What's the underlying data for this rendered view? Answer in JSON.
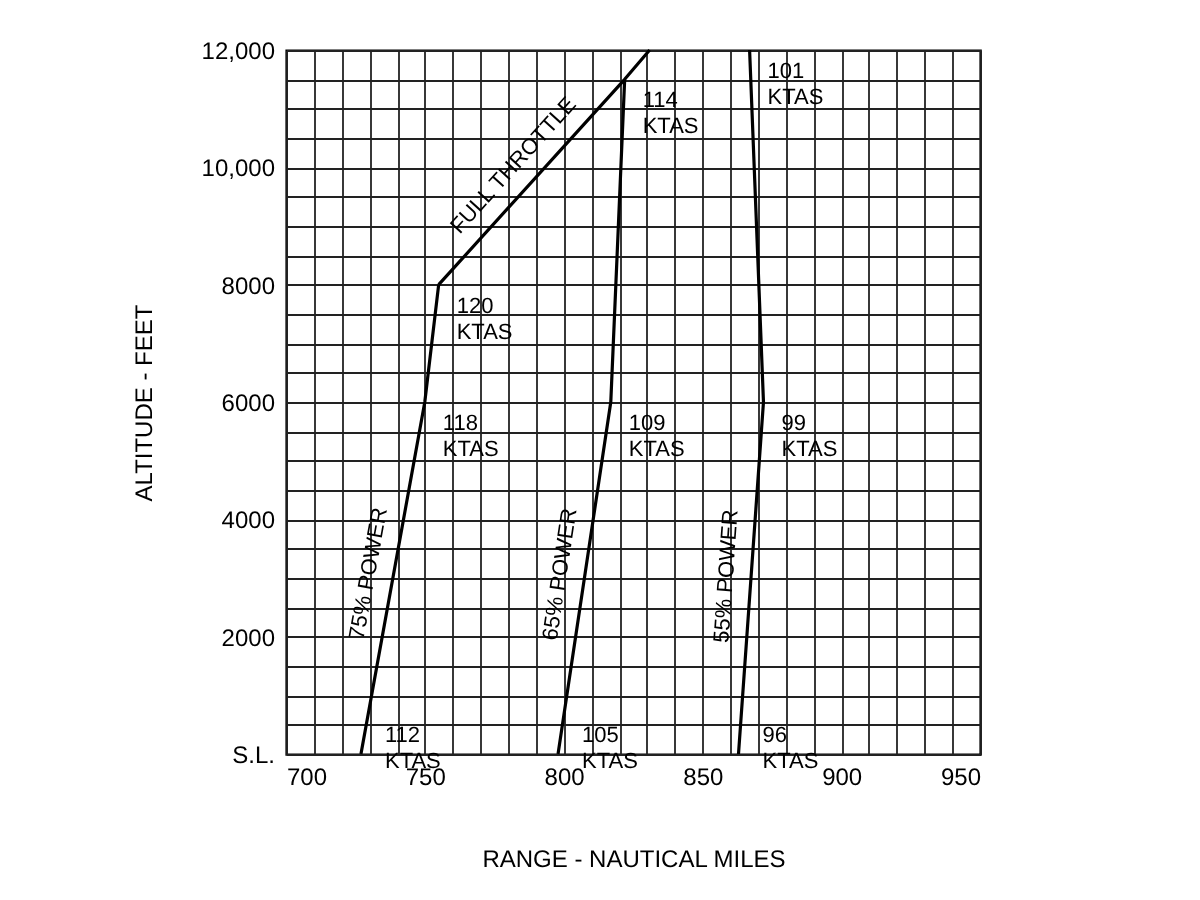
{
  "chart_data": {
    "type": "line",
    "xlabel": "RANGE - NAUTICAL MILES",
    "ylabel": "ALTITUDE - FEET",
    "xlim": [
      700,
      950
    ],
    "ylim": [
      0,
      12000
    ],
    "xticks": [
      700,
      {
        "value": 710,
        "label": null
      },
      {
        "value": 720,
        "label": null
      },
      {
        "value": 730,
        "label": null
      },
      {
        "value": 740,
        "label": null
      },
      750,
      {
        "value": 760,
        "label": null
      },
      {
        "value": 770,
        "label": null
      },
      {
        "value": 780,
        "label": null
      },
      {
        "value": 790,
        "label": null
      },
      800,
      {
        "value": 810,
        "label": null
      },
      {
        "value": 820,
        "label": null
      },
      {
        "value": 830,
        "label": null
      },
      {
        "value": 840,
        "label": null
      },
      850,
      {
        "value": 860,
        "label": null
      },
      {
        "value": 870,
        "label": null
      },
      {
        "value": 880,
        "label": null
      },
      {
        "value": 890,
        "label": null
      },
      900,
      {
        "value": 910,
        "label": null
      },
      {
        "value": 920,
        "label": null
      },
      {
        "value": 930,
        "label": null
      },
      {
        "value": 940,
        "label": null
      },
      950
    ],
    "yticks": [
      {
        "value": 0,
        "label": "S.L."
      },
      {
        "value": 500,
        "label": null
      },
      {
        "value": 1000,
        "label": null
      },
      {
        "value": 1500,
        "label": null
      },
      2000,
      {
        "value": 2500,
        "label": null
      },
      {
        "value": 3000,
        "label": null
      },
      {
        "value": 3500,
        "label": null
      },
      4000,
      {
        "value": 4500,
        "label": null
      },
      {
        "value": 5000,
        "label": null
      },
      {
        "value": 5500,
        "label": null
      },
      6000,
      {
        "value": 6500,
        "label": null
      },
      {
        "value": 7000,
        "label": null
      },
      {
        "value": 7500,
        "label": null
      },
      8000,
      {
        "value": 8500,
        "label": null
      },
      {
        "value": 9000,
        "label": null
      },
      {
        "value": 9500,
        "label": null
      },
      {
        "value": 10000,
        "label": "10,000"
      },
      {
        "value": 10500,
        "label": null
      },
      {
        "value": 11000,
        "label": null
      },
      {
        "value": 11500,
        "label": null
      },
      {
        "value": 12000,
        "label": "12,000"
      }
    ],
    "grid": true,
    "marker": "none",
    "line_style": "solid",
    "legend": false,
    "series": [
      {
        "name": "75% POWER",
        "color": "#000000",
        "x": [
          727,
          750,
          755
        ],
        "values": [
          0,
          6000,
          8000
        ]
      },
      {
        "name": "FULL THROTTLE",
        "color": "#000000",
        "x": [
          755,
          822,
          831
        ],
        "values": [
          8000,
          11500,
          12000
        ]
      },
      {
        "name": "65% POWER",
        "color": "#000000",
        "x": [
          798,
          817,
          822
        ],
        "values": [
          0,
          6000,
          11500
        ]
      },
      {
        "name": "55% POWER",
        "color": "#000000",
        "x": [
          863,
          872,
          867
        ],
        "values": [
          0,
          6000,
          12000
        ]
      }
    ],
    "annotations": [
      {
        "text": "112 KTAS",
        "x": 727,
        "y": 0
      },
      {
        "text": "118 KTAS",
        "x": 750,
        "y": 6000
      },
      {
        "text": "120 KTAS",
        "x": 755,
        "y": 8000
      },
      {
        "text": "114 KTAS",
        "x": 822,
        "y": 11500
      },
      {
        "text": "105 KTAS",
        "x": 798,
        "y": 0
      },
      {
        "text": "109 KTAS",
        "x": 817,
        "y": 6000
      },
      {
        "text": "96 KTAS",
        "x": 863,
        "y": 0
      },
      {
        "text": "99 KTAS",
        "x": 872,
        "y": 6000
      },
      {
        "text": "101 KTAS",
        "x": 867,
        "y": 12000
      }
    ]
  }
}
